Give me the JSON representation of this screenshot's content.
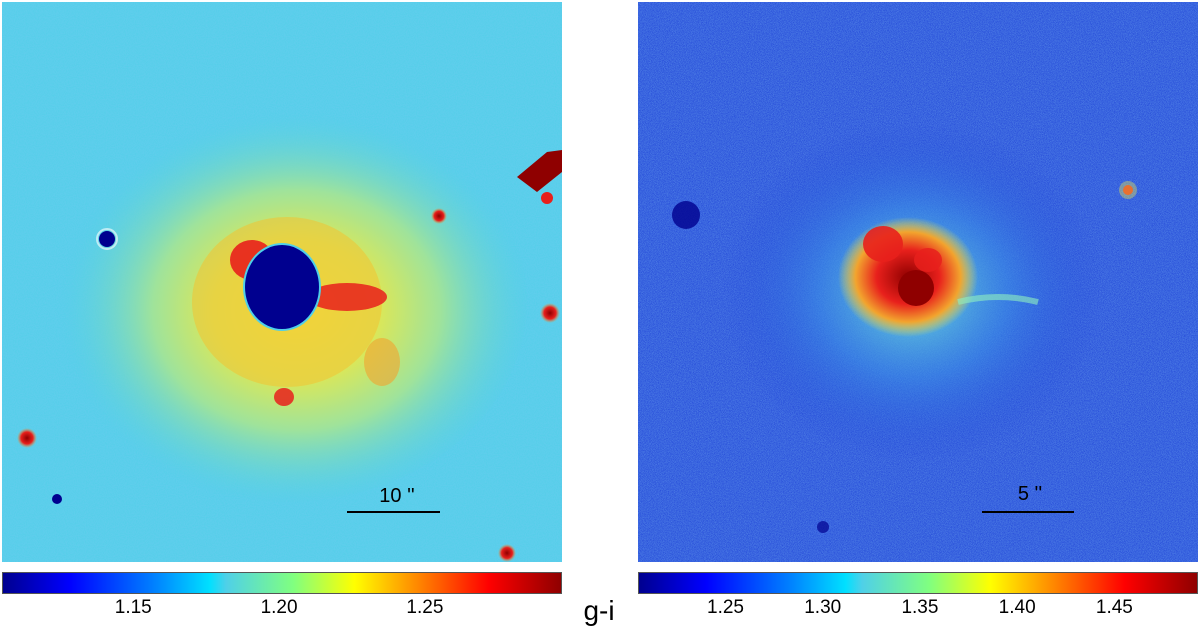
{
  "colorbar_label": "g-i",
  "left_panel": {
    "scale_label": "10 ''",
    "colorbar_ticks": [
      "1.15",
      "1.20",
      "1.25"
    ],
    "colorbar_range": [
      1.105,
      1.297
    ]
  },
  "right_panel": {
    "scale_label": "5 ''",
    "colorbar_ticks": [
      "1.25",
      "1.30",
      "1.35",
      "1.40",
      "1.45"
    ],
    "colorbar_range": [
      1.205,
      1.493
    ]
  },
  "colormap": "jet",
  "colors": {
    "dark_blue": "#00008f",
    "blue": "#1c3fd6",
    "cyan": "#4fd0e8",
    "yellow": "#e8e84f",
    "red": "#e8201c",
    "dark_red": "#8f0000"
  }
}
